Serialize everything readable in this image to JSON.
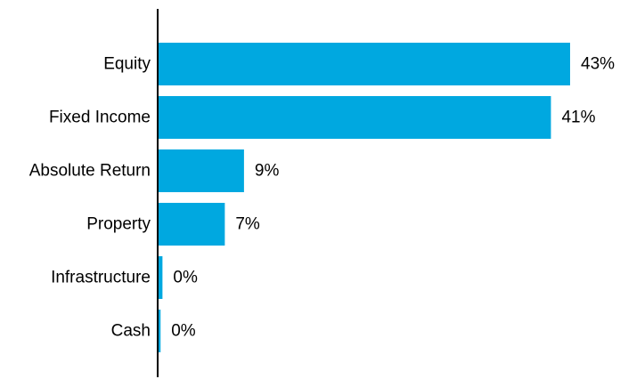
{
  "chart_data": {
    "type": "bar",
    "orientation": "horizontal",
    "categories": [
      "Equity",
      "Fixed Income",
      "Absolute Return",
      "Property",
      "Infrastructure",
      "Cash"
    ],
    "values": [
      43,
      41,
      9,
      7,
      0.5,
      0.3
    ],
    "value_labels": [
      "43%",
      "41%",
      "9%",
      "7%",
      "0%",
      "0%"
    ],
    "unit": "%",
    "xlim": [
      0,
      43
    ],
    "bar_color": "#00A8E0",
    "axis_color": "#000000",
    "grid": false,
    "legend": "none"
  }
}
